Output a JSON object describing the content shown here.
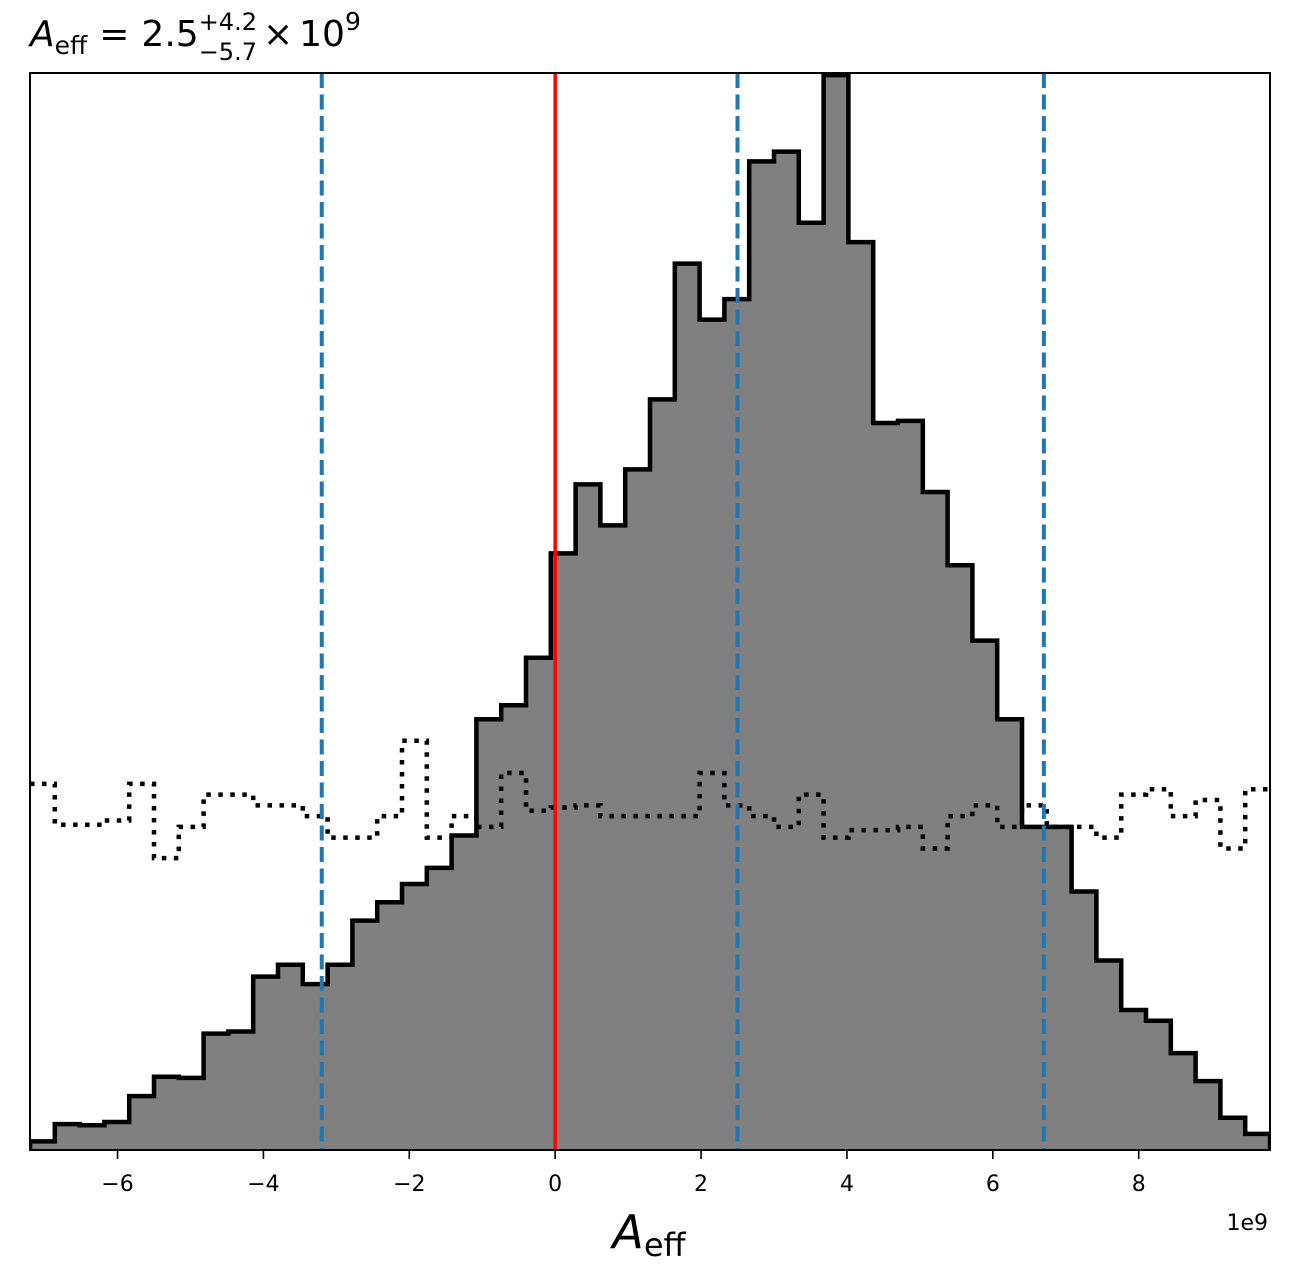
{
  "chart_data": {
    "type": "histogram",
    "title": {
      "base": "A",
      "base_sub": "eff",
      "equals": "=",
      "value": "2.5",
      "upper": "+4.2",
      "lower": "−5.7",
      "times": "×",
      "power_base": "10",
      "power_exp": "9"
    },
    "xlabel": {
      "base": "A",
      "sub": "eff"
    },
    "x_offset_label": "1e9",
    "x_scale": 1000000000,
    "xlim": [
      -7.2,
      9.8
    ],
    "ylim": [
      0,
      1.0
    ],
    "x_ticks": [
      -6,
      -4,
      -2,
      0,
      2,
      4,
      6,
      8
    ],
    "x_tick_labels": [
      "−6",
      "−4",
      "−2",
      "0",
      "2",
      "4",
      "6",
      "8"
    ],
    "grid": false,
    "posterior": {
      "bin_edges": [
        -7.2,
        -6.86,
        -6.52,
        -6.18,
        -5.84,
        -5.5,
        -5.16,
        -4.82,
        -4.48,
        -4.14,
        -3.8,
        -3.46,
        -3.12,
        -2.78,
        -2.44,
        -2.1,
        -1.76,
        -1.42,
        -1.08,
        -0.74,
        -0.4,
        -0.06,
        0.28,
        0.62,
        0.96,
        1.3,
        1.64,
        1.98,
        2.32,
        2.66,
        3.0,
        3.34,
        3.68,
        4.02,
        4.36,
        4.7,
        5.04,
        5.38,
        5.72,
        6.06,
        6.4,
        6.74,
        7.08,
        7.42,
        7.76,
        8.1,
        8.44,
        8.78,
        9.12,
        9.46,
        9.8
      ],
      "density": [
        0.008,
        0.024,
        0.023,
        0.026,
        0.05,
        0.068,
        0.067,
        0.108,
        0.11,
        0.161,
        0.172,
        0.154,
        0.172,
        0.213,
        0.23,
        0.247,
        0.262,
        0.292,
        0.4,
        0.413,
        0.457,
        0.554,
        0.618,
        0.58,
        0.632,
        0.697,
        0.823,
        0.771,
        0.79,
        0.918,
        0.927,
        0.861,
        0.998,
        0.843,
        0.675,
        0.677,
        0.611,
        0.543,
        0.473,
        0.4,
        0.3,
        0.3,
        0.24,
        0.176,
        0.13,
        0.12,
        0.09,
        0.064,
        0.03,
        0.015
      ]
    },
    "prior": {
      "bin_edges": [
        -7.2,
        -6.86,
        -6.52,
        -6.18,
        -5.84,
        -5.5,
        -5.16,
        -4.82,
        -4.48,
        -4.14,
        -3.8,
        -3.46,
        -3.12,
        -2.78,
        -2.44,
        -2.1,
        -1.76,
        -1.42,
        -1.08,
        -0.74,
        -0.4,
        -0.06,
        0.28,
        0.62,
        0.96,
        1.3,
        1.64,
        1.98,
        2.32,
        2.66,
        3.0,
        3.34,
        3.68,
        4.02,
        4.36,
        4.7,
        5.04,
        5.38,
        5.72,
        6.06,
        6.4,
        6.74,
        7.08,
        7.42,
        7.76,
        8.1,
        8.44,
        8.78,
        9.12,
        9.46,
        9.8
      ],
      "density": [
        0.34,
        0.302,
        0.302,
        0.306,
        0.34,
        0.271,
        0.3,
        0.33,
        0.33,
        0.32,
        0.32,
        0.31,
        0.29,
        0.29,
        0.31,
        0.38,
        0.29,
        0.31,
        0.3,
        0.35,
        0.315,
        0.318,
        0.32,
        0.31,
        0.31,
        0.31,
        0.31,
        0.35,
        0.32,
        0.31,
        0.3,
        0.33,
        0.29,
        0.297,
        0.297,
        0.3,
        0.28,
        0.31,
        0.32,
        0.3,
        0.32,
        0.3,
        0.3,
        0.29,
        0.33,
        0.335,
        0.31,
        0.325,
        0.28,
        0.335
      ]
    },
    "reference_line": {
      "x": 0.0,
      "color": "#ff0000"
    },
    "quantile_lines": {
      "x": [
        -3.2,
        2.5,
        6.7
      ],
      "color": "#1f77b4"
    },
    "fill_color": "#808080",
    "edge_color": "#000000"
  }
}
